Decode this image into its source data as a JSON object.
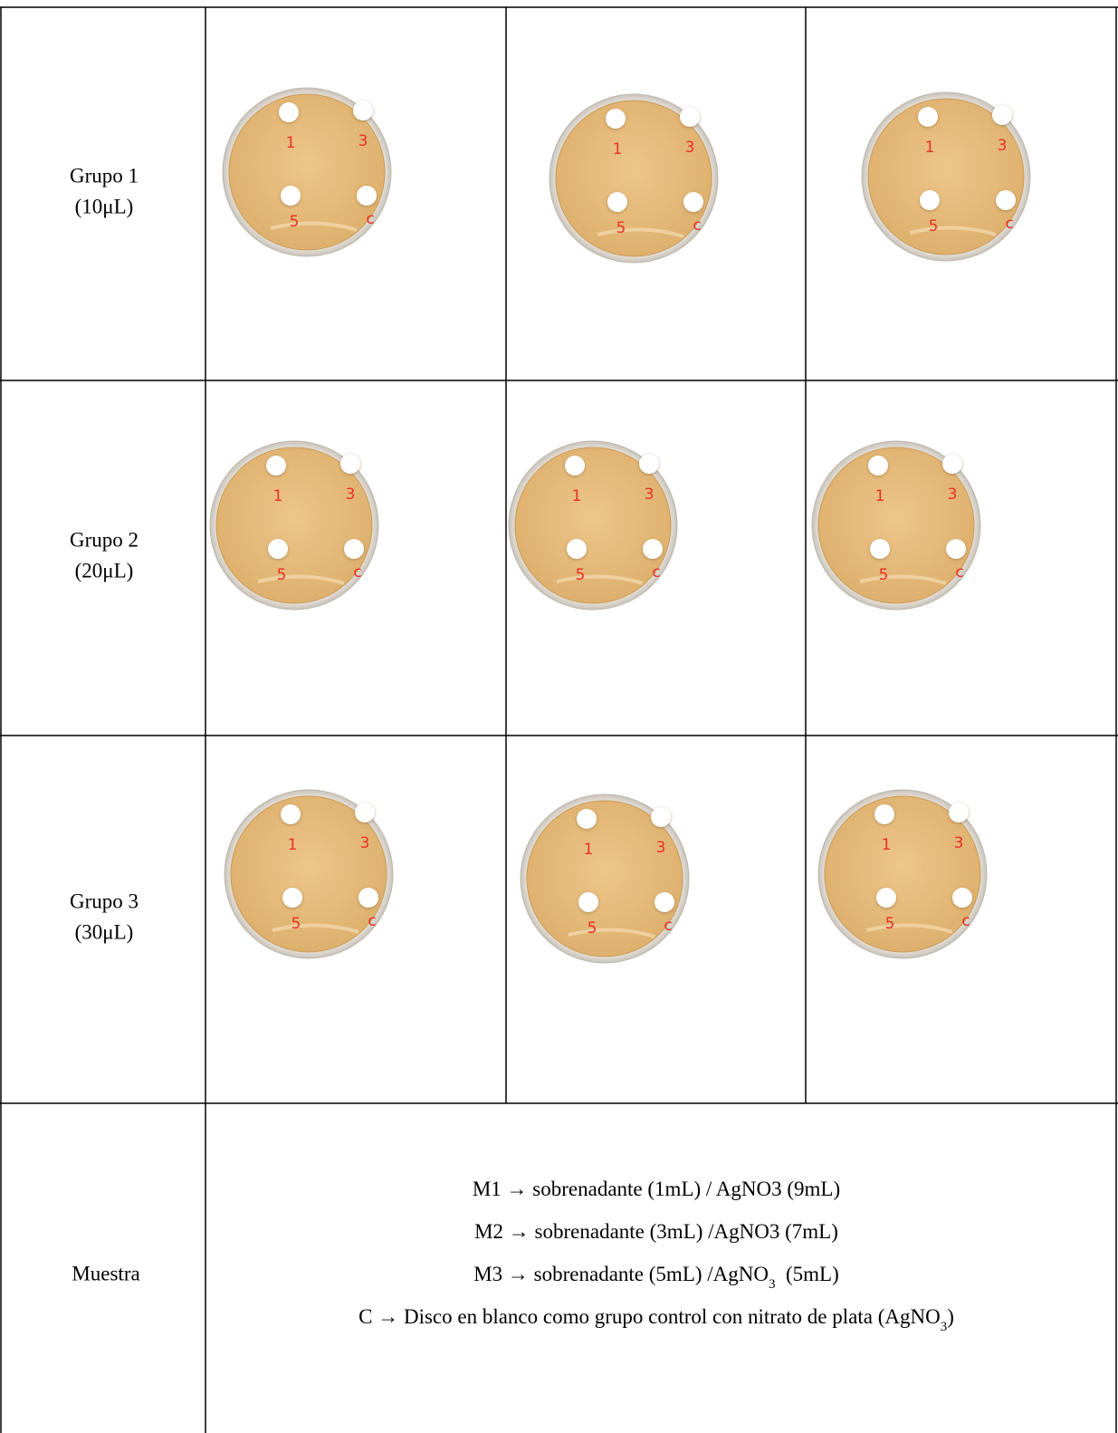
{
  "table": {
    "rows": [
      {
        "label": [
          "Grupo 1",
          "(10μL)"
        ]
      },
      {
        "label": [
          "Grupo 2",
          "(20μL)"
        ]
      },
      {
        "label": [
          "Grupo 3",
          "(30μL)"
        ]
      }
    ],
    "dish_labels": [
      "1",
      "3",
      "5",
      "c"
    ],
    "sample": {
      "label": "Muestra",
      "lines": [
        [
          {
            "text": "M1 → sobrenadante (1mL) / AgNO3 (9mL)"
          }
        ],
        [
          {
            "text": "M2 → sobrenadante (3mL) /AgNO3 (7mL)"
          }
        ],
        [
          {
            "text": "M3 → sobrenadante (5mL) /AgNO"
          },
          {
            "sub": "3"
          },
          {
            "text": "  (5mL)"
          }
        ],
        [
          {
            "text": "C → Disco en blanco como grupo control con nitrato de plata (AgNO"
          },
          {
            "sub": "3"
          },
          {
            "text": ")"
          }
        ]
      ]
    }
  }
}
